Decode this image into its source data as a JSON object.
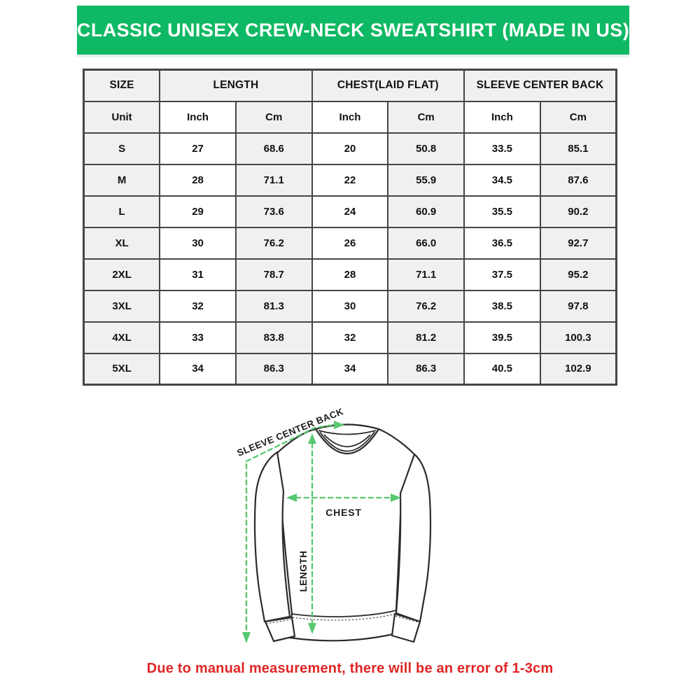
{
  "colors": {
    "banner_green": "#0fb864",
    "arrow_green": "#57c86f",
    "note_red": "#e02525",
    "cell_gray": "#f0f0f0",
    "table_border": "#454545",
    "garment_outline": "#2b2b2b",
    "text_dark": "#111111"
  },
  "banner": {
    "title": "CLASSIC UNISEX CREW-NECK SWEATSHIRT (MADE IN US)"
  },
  "table": {
    "group_headers": [
      {
        "label": "SIZE",
        "span": 1
      },
      {
        "label": "LENGTH",
        "span": 2
      },
      {
        "label": "CHEST(LAID FLAT)",
        "span": 2
      },
      {
        "label": "SLEEVE CENTER BACK",
        "span": 2
      }
    ],
    "unit_row": [
      "Unit",
      "Inch",
      "Cm",
      "Inch",
      "Cm",
      "Inch",
      "Cm"
    ],
    "rows": [
      {
        "size": "S",
        "values": [
          "27",
          "68.6",
          "20",
          "50.8",
          "33.5",
          "85.1"
        ]
      },
      {
        "size": "M",
        "values": [
          "28",
          "71.1",
          "22",
          "55.9",
          "34.5",
          "87.6"
        ]
      },
      {
        "size": "L",
        "values": [
          "29",
          "73.6",
          "24",
          "60.9",
          "35.5",
          "90.2"
        ]
      },
      {
        "size": "XL",
        "values": [
          "30",
          "76.2",
          "26",
          "66.0",
          "36.5",
          "92.7"
        ]
      },
      {
        "size": "2XL",
        "values": [
          "31",
          "78.7",
          "28",
          "71.1",
          "37.5",
          "95.2"
        ]
      },
      {
        "size": "3XL",
        "values": [
          "32",
          "81.3",
          "30",
          "76.2",
          "38.5",
          "97.8"
        ]
      },
      {
        "size": "4XL",
        "values": [
          "33",
          "83.8",
          "32",
          "81.2",
          "39.5",
          "100.3"
        ]
      },
      {
        "size": "5XL",
        "values": [
          "34",
          "86.3",
          "34",
          "86.3",
          "40.5",
          "102.9"
        ]
      }
    ]
  },
  "diagram": {
    "sleeve_label": "SLEEVE CENTER BACK",
    "chest_label": "CHEST",
    "length_label": "LENGTH"
  },
  "note": {
    "text": "Due to manual measurement, there will be an error of 1-3cm"
  }
}
